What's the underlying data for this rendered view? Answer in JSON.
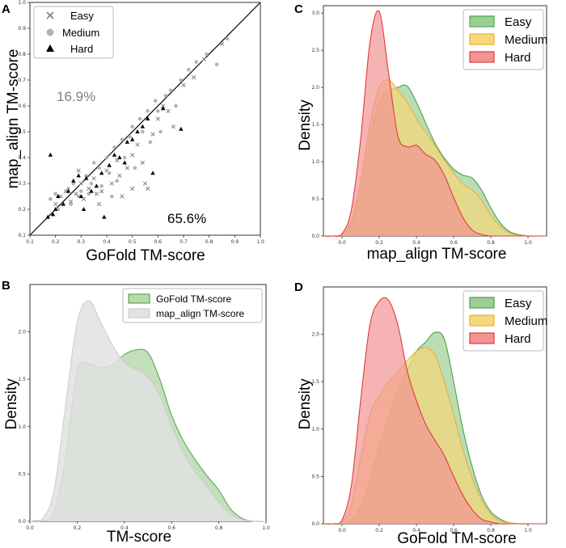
{
  "figure": {
    "panels": [
      "A",
      "B",
      "C",
      "D"
    ]
  },
  "chart_data": [
    {
      "id": "A",
      "type": "scatter",
      "xlabel": "GoFold TM-score",
      "ylabel": "map_align TM-score",
      "xlim": [
        0.1,
        1.0
      ],
      "ylim": [
        0.1,
        1.0
      ],
      "xticks": [
        "0.1",
        "0.2",
        "0.3",
        "0.4",
        "0.5",
        "0.6",
        "0.7",
        "0.8",
        "0.9",
        "1.0"
      ],
      "yticks": [
        "0.1",
        "0.2",
        "0.3",
        "0.4",
        "0.5",
        "0.6",
        "0.7",
        "0.8",
        "0.9",
        "1.0"
      ],
      "diagonal": true,
      "annotations": [
        {
          "text": "16.9%",
          "color": "#808080",
          "at": [
            0.24,
            0.66
          ]
        },
        {
          "text": "65.6%",
          "color": "#000000",
          "at": [
            0.63,
            0.17
          ]
        }
      ],
      "legend": {
        "placement": "top-left",
        "entries": [
          "Easy",
          "Medium",
          "Hard"
        ]
      },
      "series": [
        {
          "name": "Easy",
          "marker": "x",
          "color": "#7f7f7f",
          "points": [
            [
              0.2,
              0.22
            ],
            [
              0.22,
              0.25
            ],
            [
              0.24,
              0.27
            ],
            [
              0.26,
              0.23
            ],
            [
              0.28,
              0.26
            ],
            [
              0.3,
              0.3
            ],
            [
              0.31,
              0.24
            ],
            [
              0.33,
              0.28
            ],
            [
              0.35,
              0.32
            ],
            [
              0.36,
              0.26
            ],
            [
              0.38,
              0.27
            ],
            [
              0.4,
              0.35
            ],
            [
              0.42,
              0.3
            ],
            [
              0.44,
              0.39
            ],
            [
              0.46,
              0.25
            ],
            [
              0.48,
              0.36
            ],
            [
              0.5,
              0.41
            ],
            [
              0.52,
              0.45
            ],
            [
              0.54,
              0.38
            ],
            [
              0.56,
              0.28
            ],
            [
              0.58,
              0.49
            ],
            [
              0.6,
              0.55
            ],
            [
              0.62,
              0.6
            ],
            [
              0.64,
              0.58
            ],
            [
              0.66,
              0.52
            ],
            [
              0.7,
              0.68
            ],
            [
              0.74,
              0.71
            ],
            [
              0.78,
              0.78
            ],
            [
              0.85,
              0.84
            ],
            [
              0.55,
              0.3
            ],
            [
              0.45,
              0.33
            ],
            [
              0.37,
              0.22
            ],
            [
              0.29,
              0.35
            ],
            [
              0.5,
              0.28
            ]
          ]
        },
        {
          "name": "Medium",
          "marker": "o",
          "color": "#b3b3b3",
          "points": [
            [
              0.18,
              0.24
            ],
            [
              0.2,
              0.26
            ],
            [
              0.21,
              0.2
            ],
            [
              0.23,
              0.22
            ],
            [
              0.25,
              0.28
            ],
            [
              0.27,
              0.3
            ],
            [
              0.29,
              0.25
            ],
            [
              0.3,
              0.27
            ],
            [
              0.32,
              0.33
            ],
            [
              0.34,
              0.3
            ],
            [
              0.35,
              0.38
            ],
            [
              0.37,
              0.36
            ],
            [
              0.38,
              0.29
            ],
            [
              0.4,
              0.4
            ],
            [
              0.41,
              0.34
            ],
            [
              0.43,
              0.44
            ],
            [
              0.44,
              0.31
            ],
            [
              0.46,
              0.47
            ],
            [
              0.47,
              0.4
            ],
            [
              0.49,
              0.48
            ],
            [
              0.5,
              0.52
            ],
            [
              0.51,
              0.36
            ],
            [
              0.53,
              0.55
            ],
            [
              0.54,
              0.5
            ],
            [
              0.56,
              0.58
            ],
            [
              0.57,
              0.46
            ],
            [
              0.59,
              0.62
            ],
            [
              0.6,
              0.58
            ],
            [
              0.61,
              0.5
            ],
            [
              0.63,
              0.64
            ],
            [
              0.65,
              0.66
            ],
            [
              0.67,
              0.6
            ],
            [
              0.69,
              0.7
            ],
            [
              0.72,
              0.74
            ],
            [
              0.75,
              0.77
            ],
            [
              0.79,
              0.8
            ],
            [
              0.83,
              0.76
            ],
            [
              0.87,
              0.86
            ],
            [
              0.26,
              0.22
            ],
            [
              0.33,
              0.26
            ],
            [
              0.42,
              0.25
            ]
          ]
        },
        {
          "name": "Hard",
          "marker": "^",
          "color": "#000000",
          "points": [
            [
              0.17,
              0.17
            ],
            [
              0.18,
              0.41
            ],
            [
              0.19,
              0.18
            ],
            [
              0.2,
              0.2
            ],
            [
              0.21,
              0.25
            ],
            [
              0.23,
              0.22
            ],
            [
              0.25,
              0.27
            ],
            [
              0.27,
              0.31
            ],
            [
              0.29,
              0.33
            ],
            [
              0.31,
              0.2
            ],
            [
              0.32,
              0.32
            ],
            [
              0.34,
              0.27
            ],
            [
              0.36,
              0.29
            ],
            [
              0.38,
              0.34
            ],
            [
              0.39,
              0.17
            ],
            [
              0.41,
              0.37
            ],
            [
              0.43,
              0.41
            ],
            [
              0.45,
              0.4
            ],
            [
              0.48,
              0.46
            ],
            [
              0.5,
              0.47
            ],
            [
              0.52,
              0.5
            ],
            [
              0.54,
              0.52
            ],
            [
              0.56,
              0.55
            ],
            [
              0.58,
              0.34
            ],
            [
              0.62,
              0.59
            ],
            [
              0.69,
              0.51
            ],
            [
              0.47,
              0.38
            ],
            [
              0.3,
              0.25
            ]
          ]
        }
      ]
    },
    {
      "id": "B",
      "type": "area",
      "xlabel": "TM-score",
      "ylabel": "Density",
      "xlim": [
        0.0,
        1.0
      ],
      "ylim": [
        0.0,
        2.5
      ],
      "xticks": [
        "0.0",
        "0.2",
        "0.4",
        "0.6",
        "0.8",
        "1.0"
      ],
      "yticks": [
        "0.0",
        "0.5",
        "1.0",
        "1.5",
        "2.0"
      ],
      "legend": {
        "placement": "top-right",
        "entries": [
          "GoFold TM-score",
          "map_align TM-score"
        ]
      },
      "x": [
        0.0,
        0.05,
        0.1,
        0.15,
        0.2,
        0.25,
        0.3,
        0.35,
        0.4,
        0.45,
        0.5,
        0.55,
        0.6,
        0.65,
        0.7,
        0.75,
        0.8,
        0.85,
        0.9,
        0.95,
        1.0
      ],
      "series": [
        {
          "name": "GoFold TM-score",
          "fill": "#b8d9b0",
          "stroke": "#5aa84e",
          "values": [
            0.0,
            0.01,
            0.08,
            0.65,
            1.58,
            1.66,
            1.62,
            1.65,
            1.76,
            1.81,
            1.78,
            1.5,
            1.12,
            0.85,
            0.65,
            0.48,
            0.33,
            0.13,
            0.03,
            0.0,
            0.0
          ]
        },
        {
          "name": "map_align TM-score",
          "fill": "#e2e2e2",
          "stroke": "#cfcfcf",
          "values": [
            0.0,
            0.02,
            0.3,
            1.2,
            2.1,
            2.33,
            2.1,
            1.86,
            1.68,
            1.6,
            1.52,
            1.32,
            1.0,
            0.72,
            0.52,
            0.36,
            0.2,
            0.07,
            0.02,
            0.0,
            0.0
          ]
        }
      ]
    },
    {
      "id": "C",
      "type": "area",
      "xlabel": "map_align TM-score",
      "ylabel": "Density",
      "xlim": [
        -0.1,
        1.1
      ],
      "ylim": [
        0.0,
        3.1
      ],
      "xticks": [
        "0.0",
        "0.2",
        "0.4",
        "0.6",
        "0.8",
        "1.0"
      ],
      "yticks": [
        "0.0",
        "0.5",
        "1.0",
        "1.5",
        "2.0",
        "2.5",
        "3.0"
      ],
      "legend": {
        "placement": "top-right",
        "entries": [
          "Easy",
          "Medium",
          "Hard"
        ]
      },
      "x": [
        -0.1,
        -0.05,
        0.0,
        0.05,
        0.1,
        0.15,
        0.2,
        0.25,
        0.3,
        0.35,
        0.4,
        0.45,
        0.5,
        0.55,
        0.6,
        0.65,
        0.7,
        0.75,
        0.8,
        0.85,
        0.9,
        0.95,
        1.0,
        1.05,
        1.1
      ],
      "series": [
        {
          "name": "Easy",
          "fill": "#9ccf93",
          "stroke": "#4ea24a",
          "values": [
            0,
            0,
            0.02,
            0.15,
            0.6,
            1.3,
            1.8,
            1.95,
            2.0,
            2.02,
            1.8,
            1.52,
            1.25,
            1.05,
            0.9,
            0.82,
            0.78,
            0.62,
            0.38,
            0.18,
            0.06,
            0.02,
            0,
            0,
            0
          ]
        },
        {
          "name": "Medium",
          "fill": "#f7d77a",
          "stroke": "#e5b23a",
          "values": [
            0,
            0,
            0.02,
            0.2,
            0.75,
            1.5,
            2.0,
            2.1,
            1.96,
            1.8,
            1.58,
            1.4,
            1.22,
            1.02,
            0.85,
            0.7,
            0.62,
            0.48,
            0.28,
            0.13,
            0.04,
            0.01,
            0,
            0,
            0
          ]
        },
        {
          "name": "Hard",
          "fill": "#f29393",
          "stroke": "#e33a3a",
          "values": [
            0,
            0,
            0.03,
            0.35,
            1.3,
            2.6,
            3.02,
            2.2,
            1.35,
            1.2,
            1.22,
            1.1,
            1.02,
            0.82,
            0.52,
            0.25,
            0.08,
            0.02,
            0,
            0,
            0,
            0,
            0,
            0,
            0
          ]
        }
      ]
    },
    {
      "id": "D",
      "type": "area",
      "xlabel": "GoFold TM-score",
      "ylabel": "Density",
      "xlim": [
        -0.1,
        1.1
      ],
      "ylim": [
        0.0,
        2.5
      ],
      "xticks": [
        "0.0",
        "0.2",
        "0.4",
        "0.6",
        "0.8",
        "1.0"
      ],
      "yticks": [
        "0.0",
        "0.5",
        "1.0",
        "1.5",
        "2.0"
      ],
      "legend": {
        "placement": "top-right",
        "entries": [
          "Easy",
          "Medium",
          "Hard"
        ]
      },
      "x": [
        -0.1,
        -0.05,
        0.0,
        0.05,
        0.1,
        0.15,
        0.2,
        0.25,
        0.3,
        0.35,
        0.4,
        0.45,
        0.5,
        0.55,
        0.6,
        0.65,
        0.7,
        0.75,
        0.8,
        0.85,
        0.9,
        0.95,
        1.0,
        1.05,
        1.1
      ],
      "series": [
        {
          "name": "Easy",
          "fill": "#9ccf93",
          "stroke": "#4ea24a",
          "values": [
            0,
            0,
            0,
            0.04,
            0.18,
            0.45,
            0.8,
            1.12,
            1.4,
            1.62,
            1.82,
            1.92,
            2.02,
            1.95,
            1.5,
            1.0,
            0.6,
            0.3,
            0.13,
            0.05,
            0.01,
            0,
            0,
            0,
            0
          ]
        },
        {
          "name": "Medium",
          "fill": "#f7d77a",
          "stroke": "#e5b23a",
          "values": [
            0,
            0,
            0.02,
            0.2,
            0.7,
            1.15,
            1.35,
            1.5,
            1.6,
            1.72,
            1.82,
            1.86,
            1.78,
            1.5,
            1.15,
            0.78,
            0.48,
            0.25,
            0.1,
            0.03,
            0.01,
            0,
            0,
            0,
            0
          ]
        },
        {
          "name": "Hard",
          "fill": "#f29393",
          "stroke": "#e33a3a",
          "values": [
            0,
            0,
            0.04,
            0.4,
            1.3,
            2.1,
            2.35,
            2.36,
            2.1,
            1.62,
            1.3,
            1.05,
            0.88,
            0.72,
            0.5,
            0.3,
            0.15,
            0.05,
            0.02,
            0,
            0,
            0,
            0,
            0,
            0
          ]
        }
      ]
    }
  ]
}
